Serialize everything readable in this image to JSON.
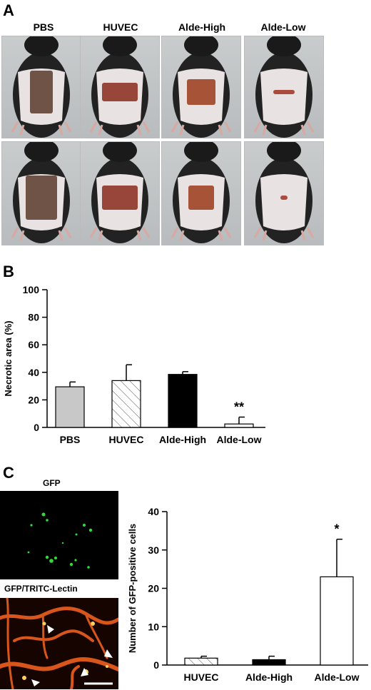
{
  "panelA": {
    "letter": "A",
    "columns": [
      "PBS",
      "HUVEC",
      "Alde-High",
      "Alde-Low"
    ]
  },
  "panelB": {
    "letter": "B"
  },
  "panelC": {
    "letter": "C",
    "micro_labels": [
      "GFP",
      "GFP/TRITC-Lectin"
    ]
  },
  "colors": {
    "gray_bar": "#c8c8c8",
    "black_bar": "#000000",
    "white_bar": "#ffffff"
  },
  "chart_data": [
    {
      "type": "bar",
      "categories": [
        "PBS",
        "HUVEC",
        "Alde-High",
        "Alde-Low"
      ],
      "values": [
        29.5,
        34,
        38.5,
        2.5
      ],
      "errors": [
        3.5,
        11.5,
        2,
        5
      ],
      "fills": [
        "gray",
        "hatched",
        "black",
        "white"
      ],
      "title": "",
      "xlabel": "",
      "ylabel": "Necrotic area (%)",
      "ylim": [
        0,
        100
      ],
      "yticks": [
        0,
        20,
        40,
        60,
        80,
        100
      ],
      "annotations": [
        {
          "category": "Alde-Low",
          "text": "**"
        }
      ]
    },
    {
      "type": "bar",
      "categories": [
        "HUVEC",
        "Alde-High",
        "Alde-Low"
      ],
      "values": [
        1.8,
        1.4,
        23
      ],
      "errors": [
        0.5,
        0.9,
        9.8
      ],
      "fills": [
        "hatched",
        "black",
        "white"
      ],
      "title": "",
      "xlabel": "",
      "ylabel": "Number of GFP-positive cells",
      "ylim": [
        0,
        40
      ],
      "yticks": [
        0,
        10,
        20,
        30,
        40
      ],
      "annotations": [
        {
          "category": "Alde-Low",
          "text": "*"
        }
      ]
    }
  ]
}
